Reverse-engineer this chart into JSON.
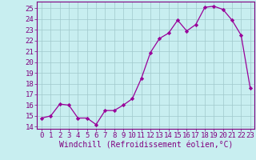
{
  "x": [
    0,
    1,
    2,
    3,
    4,
    5,
    6,
    7,
    8,
    9,
    10,
    11,
    12,
    13,
    14,
    15,
    16,
    17,
    18,
    19,
    20,
    21,
    22,
    23
  ],
  "y": [
    14.8,
    15.0,
    16.1,
    16.0,
    14.8,
    14.8,
    14.2,
    15.5,
    15.5,
    16.0,
    16.6,
    18.5,
    20.9,
    22.2,
    22.7,
    23.9,
    22.9,
    23.5,
    25.1,
    25.2,
    24.9,
    23.9,
    22.5,
    17.6
  ],
  "line_color": "#990099",
  "marker": "D",
  "marker_size": 2.2,
  "bg_color": "#c8eef0",
  "grid_color": "#a0c8cc",
  "xlabel": "Windchill (Refroidissement éolien,°C)",
  "xlim_min": -0.5,
  "xlim_max": 23.5,
  "ylim_min": 13.8,
  "ylim_max": 25.6,
  "yticks": [
    14,
    15,
    16,
    17,
    18,
    19,
    20,
    21,
    22,
    23,
    24,
    25
  ],
  "xticks": [
    0,
    1,
    2,
    3,
    4,
    5,
    6,
    7,
    8,
    9,
    10,
    11,
    12,
    13,
    14,
    15,
    16,
    17,
    18,
    19,
    20,
    21,
    22,
    23
  ],
  "tick_fontsize": 6.5,
  "xlabel_fontsize": 7.0,
  "spine_color": "#800080",
  "tick_color": "#800080"
}
